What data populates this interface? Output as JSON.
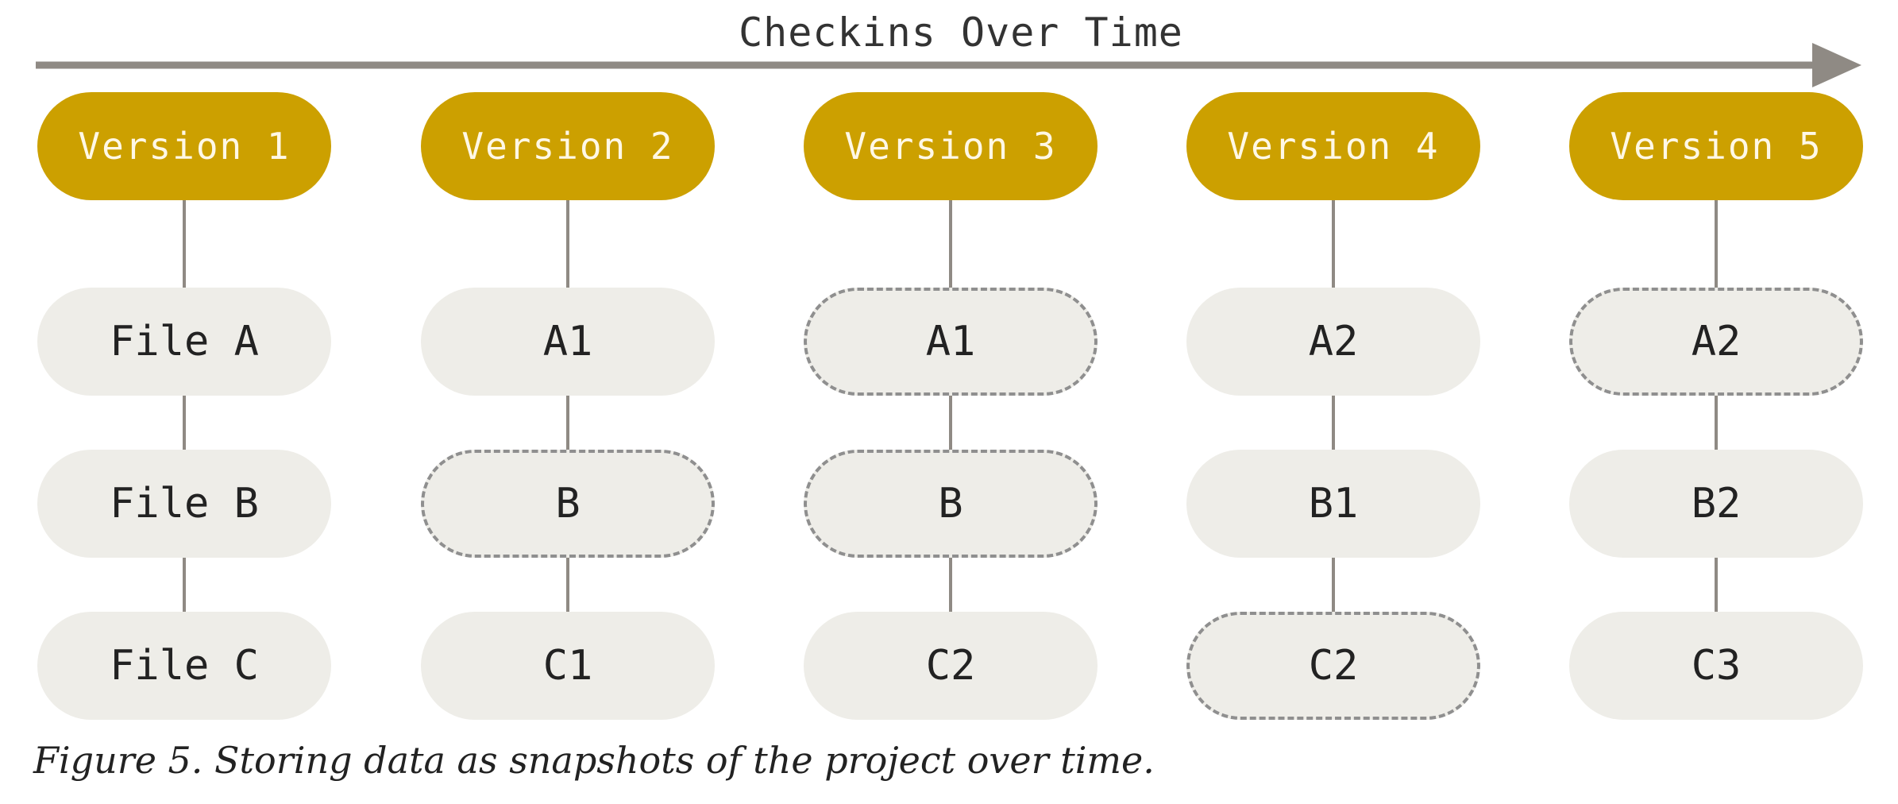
{
  "timeline": {
    "label": "Checkins Over Time"
  },
  "columns": [
    {
      "version": "Version 1",
      "files": [
        {
          "label": "File A",
          "unchanged": false
        },
        {
          "label": "File B",
          "unchanged": false
        },
        {
          "label": "File C",
          "unchanged": false
        }
      ]
    },
    {
      "version": "Version 2",
      "files": [
        {
          "label": "A1",
          "unchanged": false
        },
        {
          "label": "B",
          "unchanged": true
        },
        {
          "label": "C1",
          "unchanged": false
        }
      ]
    },
    {
      "version": "Version 3",
      "files": [
        {
          "label": "A1",
          "unchanged": true
        },
        {
          "label": "B",
          "unchanged": true
        },
        {
          "label": "C2",
          "unchanged": false
        }
      ]
    },
    {
      "version": "Version 4",
      "files": [
        {
          "label": "A2",
          "unchanged": false
        },
        {
          "label": "B1",
          "unchanged": false
        },
        {
          "label": "C2",
          "unchanged": true
        }
      ]
    },
    {
      "version": "Version 5",
      "files": [
        {
          "label": "A2",
          "unchanged": true
        },
        {
          "label": "B2",
          "unchanged": false
        },
        {
          "label": "C3",
          "unchanged": false
        }
      ]
    }
  ],
  "caption": "Figure 5. Storing data as snapshots of the project over time.",
  "colors": {
    "version_fill": "#cca000",
    "version_text": "#fff8e6",
    "file_fill": "#eeede8",
    "connector": "#8f8a84",
    "arrow": "#8f8a84"
  }
}
